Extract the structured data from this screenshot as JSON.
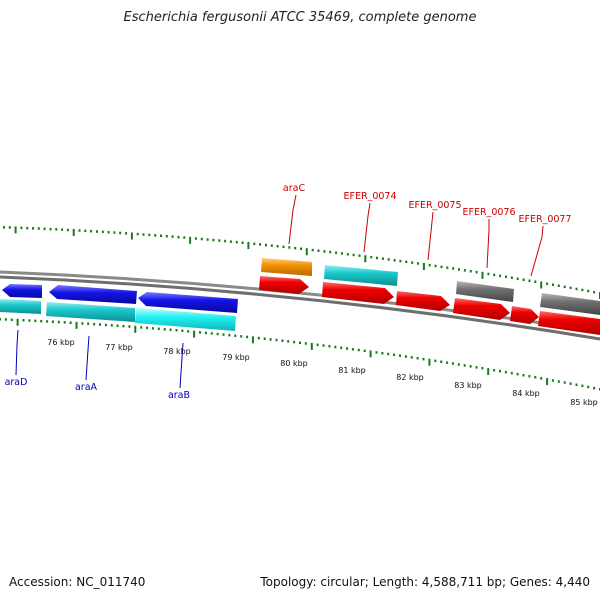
{
  "title": "Escherichia fergusonii ATCC 35469, complete genome",
  "footer": {
    "accession": "Accession: NC_011740",
    "summary": "Topology: circular; Length: 4,588,711 bp; Genes: 4,440"
  },
  "colors": {
    "cds_red": "#ee0000",
    "gene_cyan": "#19c8cc",
    "gene_blue": "#1414e6",
    "gene_gray": "#707070",
    "gene_orange": "#f39200",
    "tick_green": "#1a7a1a",
    "backbone": "#888888"
  },
  "ruler_labels": [
    "76 kbp",
    "77 kbp",
    "78 kbp",
    "79 kbp",
    "80 kbp",
    "81 kbp",
    "82 kbp",
    "83 kbp",
    "84 kbp",
    "85 kbp"
  ],
  "gene_labels_top": [
    "araC",
    "EFER_0074",
    "EFER_0075",
    "EFER_0076",
    "EFER_0077"
  ],
  "gene_labels_bottom": [
    "araD",
    "araA",
    "araB"
  ]
}
